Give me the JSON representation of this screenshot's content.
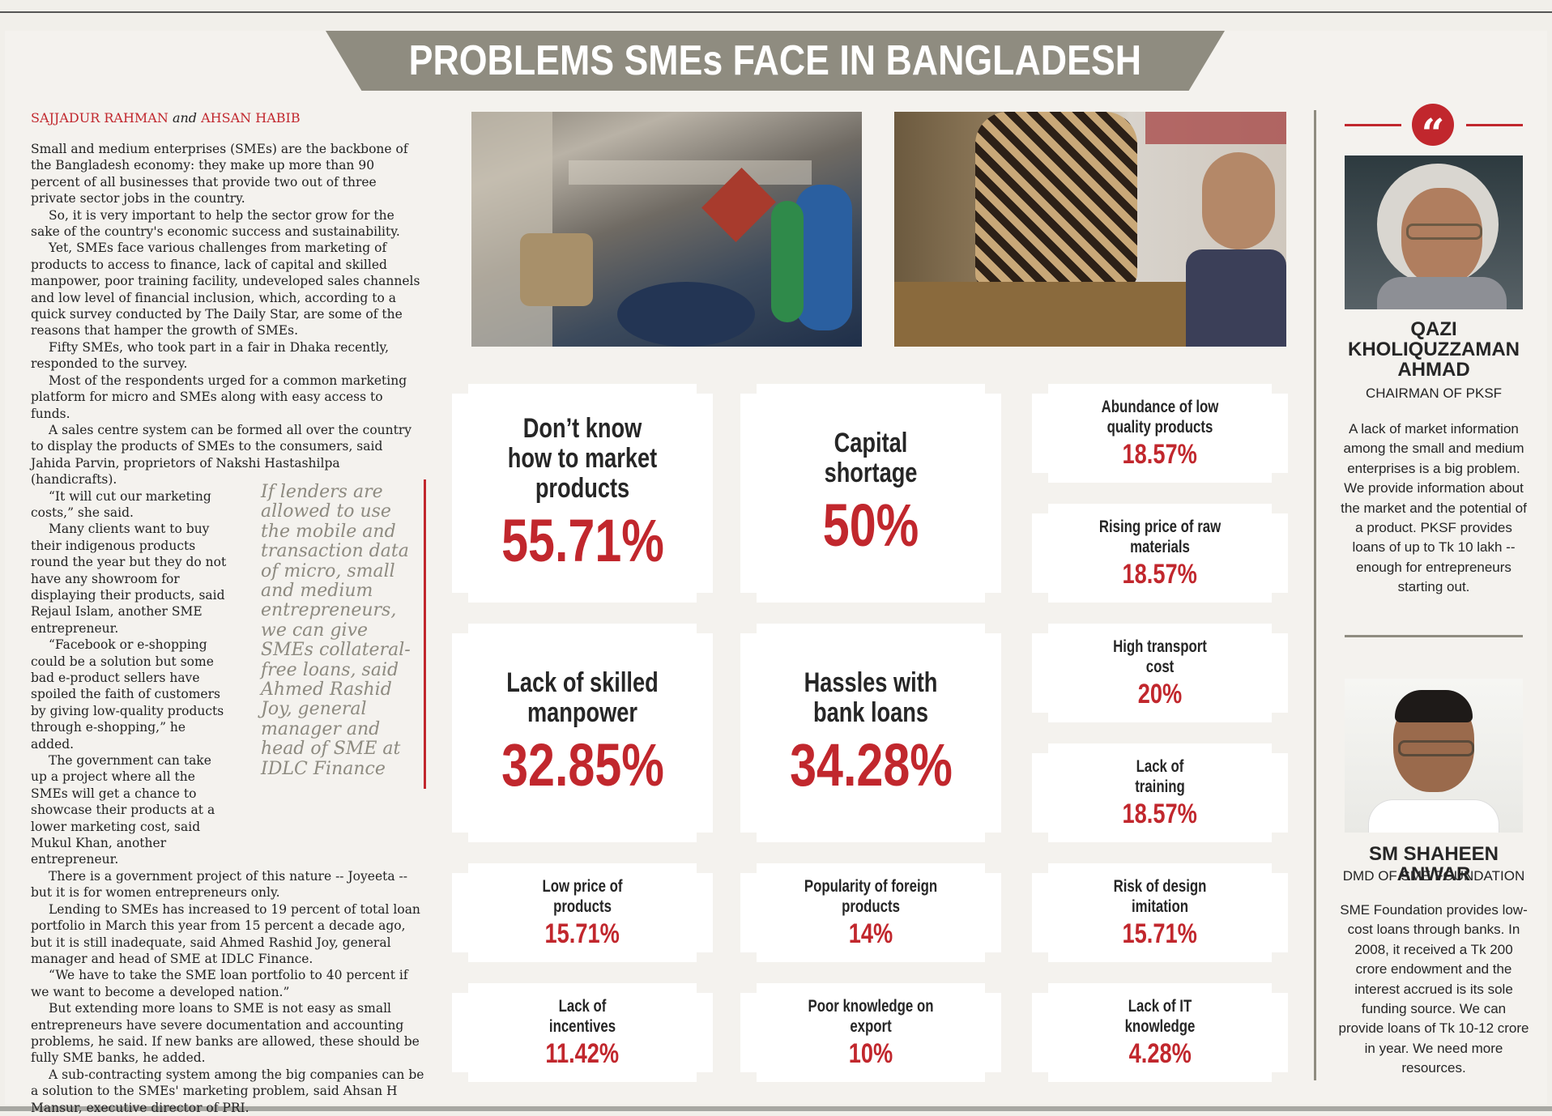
{
  "header": {
    "title": "PROBLEMS SMEs FACE IN BANGLADESH"
  },
  "byline": {
    "author1": "SAJJADUR RAHMAN",
    "conj": "and",
    "author2": "AHSAN HABIB"
  },
  "article": {
    "paragraphs": [
      "Small and medium enterprises (SMEs) are the backbone of the Bangladesh economy: they make up more than 90 percent of all businesses that provide two out of three private sector jobs in the country.",
      "So, it is very important to help the sector grow for the sake of the country's economic success and sustainability.",
      "Yet, SMEs face various challenges from marketing of products to access to finance, lack of capital and skilled manpower, poor training facility, undeveloped sales channels and low level of financial inclusion, which, according to a quick survey conducted by The Daily Star, are some of the reasons that hamper the growth of SMEs.",
      "Fifty SMEs, who took part in a fair in Dhaka recently, responded to the survey.",
      "Most of the respondents urged for a common marketing platform for micro and SMEs along with easy access to funds.",
      "A sales centre system can be formed all over the country to display the products of SMEs to the consumers, said Jahida Parvin, proprietors of Nakshi Hastashilpa (handicrafts).",
      "“It will cut our marketing costs,” she said.",
      "Many clients want to buy their indigenous products round the year but they do not have any showroom for displaying their products, said Rejaul Islam, another SME entrepreneur.",
      "“Facebook or e-shopping could be a solution but some bad e-product sellers have spoiled the faith of customers by giving low-quality products through e-shopping,” he added.",
      "The government can take up a project where all the SMEs will get a chance to showcase their products at a lower marketing cost, said Mukul Khan, another entrepreneur.",
      "There is a government project of this nature -- Joyeeta -- but it is for women entrepreneurs only.",
      "Lending to SMEs has increased to 19 percent of total loan portfolio in March this year from 15 percent a decade ago, but it is still inadequate, said Ahmed Rashid Joy, general manager and head of SME at IDLC Finance.",
      "“We have to take the SME loan portfolio to 40 percent if we want to become a developed nation.”",
      "But extending more loans to SME is not easy as small entrepreneurs have severe documentation and accounting problems, he said. If new banks are allowed, these should be fully SME banks, he added.",
      "A sub-contracting system among the big companies can be a solution to the SMEs' marketing problem, said Ahsan H Mansur, executive director of PRI."
    ]
  },
  "pullquote": "If lenders are allowed to use the mobile and transaction data of micro, small and medium entrepreneurs, we can give SMEs collateral-free loans, said Ahmed Rashid Joy, general manager and head of SME at IDLC Finance",
  "stats": {
    "market": {
      "label": "Don’t know how to market products",
      "value": "55.71%"
    },
    "capital": {
      "label": "Capital shortage",
      "value": "50%"
    },
    "manpower": {
      "label": "Lack of skilled manpower",
      "value": "32.85%"
    },
    "bank_loans": {
      "label": "Hassles with bank loans",
      "value": "34.28%"
    },
    "low_quality": {
      "label": "Abundance of low quality products",
      "value": "18.57%"
    },
    "raw_materials": {
      "label": "Rising price of raw materials",
      "value": "18.57%"
    },
    "transport": {
      "label": "High transport cost",
      "value": "20%"
    },
    "training": {
      "label": "Lack of training",
      "value": "18.57%"
    },
    "low_price": {
      "label": "Low price of products",
      "value": "15.71%"
    },
    "foreign": {
      "label": "Popularity of foreign products",
      "value": "14%"
    },
    "imitation": {
      "label": "Risk of design imitation",
      "value": "15.71%"
    },
    "incentives": {
      "label": "Lack of incentives",
      "value": "11.42%"
    },
    "export": {
      "label": "Poor knowledge on export",
      "value": "10%"
    },
    "it": {
      "label": "Lack of IT knowledge",
      "value": "4.28%"
    }
  },
  "sidebar": {
    "quote_mark": "“",
    "person1": {
      "name": "QAZI KHOLIQUZZAMAN AHMAD",
      "role": "CHAIRMAN OF PKSF",
      "quote": "A lack of market information among the small and medium enterprises is a big problem. We provide information about the market and the potential of a product. PKSF provides loans of up to Tk 10 lakh -- enough for entrepreneurs starting out."
    },
    "person2": {
      "name": "SM SHAHEEN ANWAR",
      "role": "DMD OF SME FOUNDATION",
      "quote": "SME Foundation provides low-cost loans through banks. In 2008, it received a Tk 200 crore endowment and the interest accrued is its sole funding source. We can provide loans of Tk 10-12 crore in year. We need more resources."
    }
  },
  "colors": {
    "accent": "#c1272d",
    "banner": "#8f8c80",
    "background": "#f4f2ee"
  }
}
